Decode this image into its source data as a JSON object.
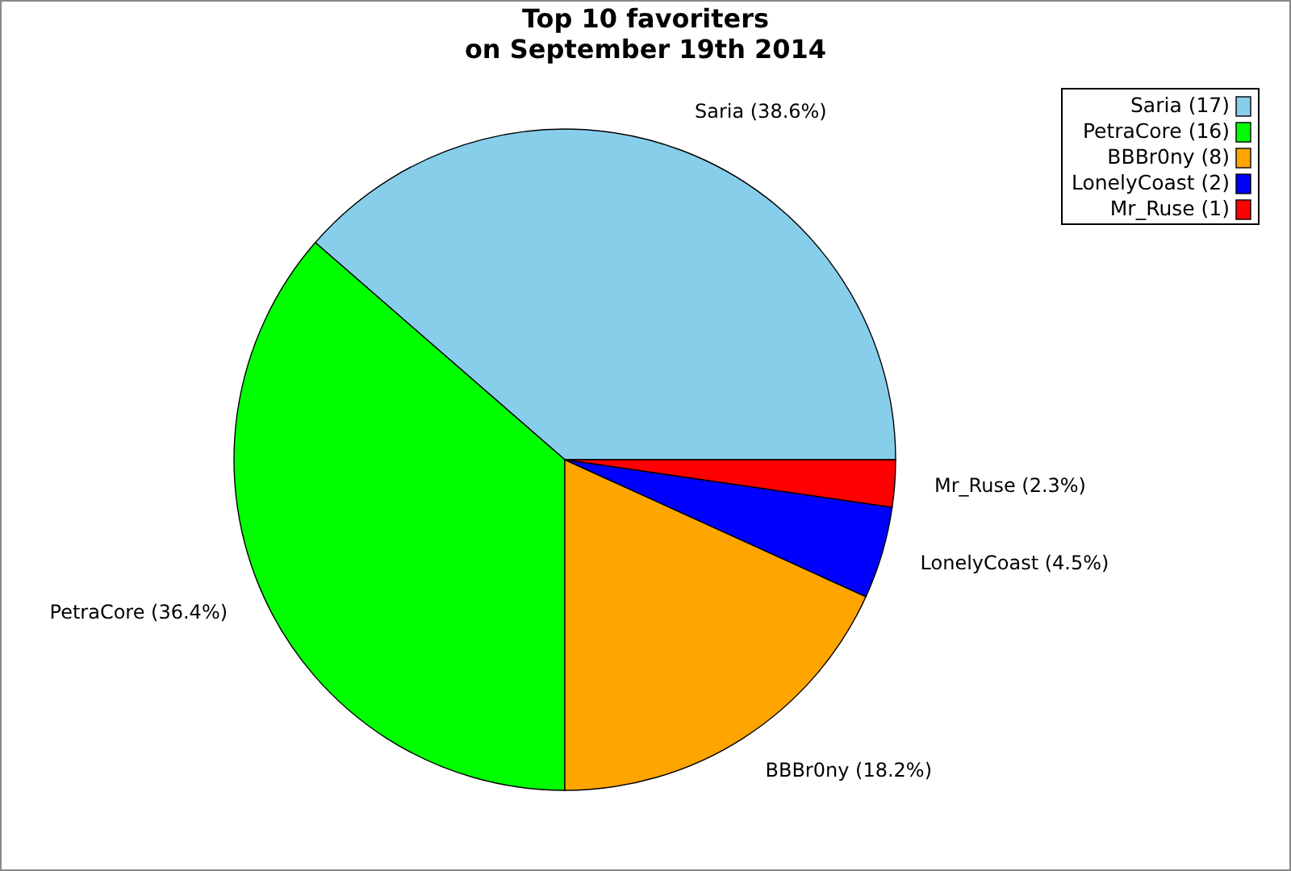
{
  "chart_data": {
    "type": "pie",
    "title": "Top 10 favoriters\non September 19th 2014",
    "categories": [
      "Saria (17)",
      "PetraCore (16)",
      "BBBr0ny (8)",
      "LonelyCoast (2)",
      "Mr_Ruse (1)"
    ],
    "values": [
      38.6,
      36.4,
      18.2,
      4.5,
      2.3
    ],
    "colors": [
      "#87ceeb",
      "#00ff00",
      "#ffa500",
      "#0000ff",
      "#ff0000"
    ],
    "value_labels": [
      "Saria (38.6%)",
      "PetraCore (36.4%)",
      "BBBr0ny (18.2%)",
      "LonelyCoast (4.5%)",
      "Mr_Ruse (2.3%)"
    ],
    "legend": "top right"
  }
}
